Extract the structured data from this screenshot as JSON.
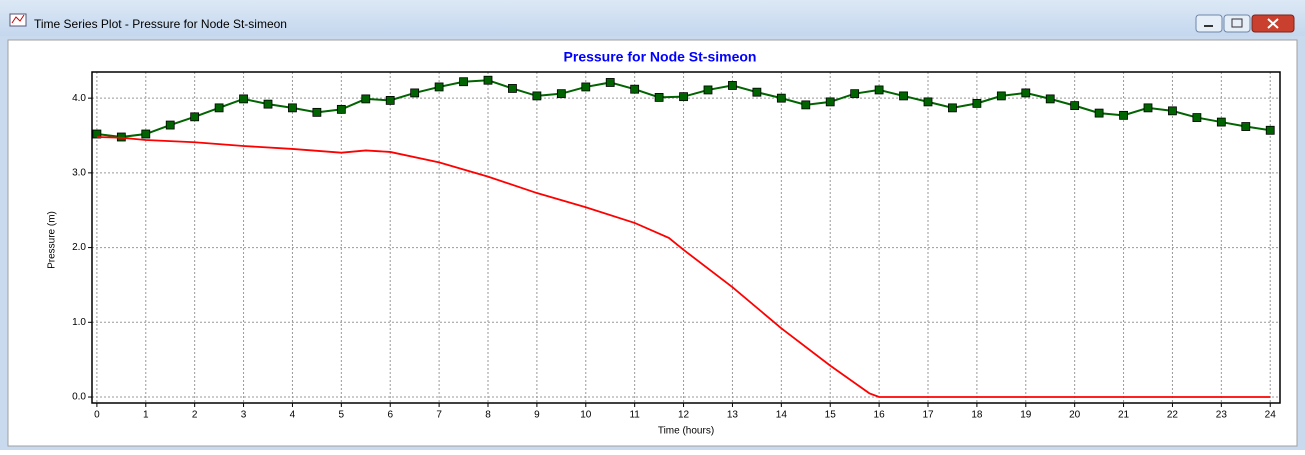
{
  "window": {
    "title": "Time Series Plot - Pressure for Node St-simeon"
  },
  "chart_data": {
    "type": "line",
    "title": "Pressure for Node St-simeon",
    "x_label": "Time (hours)",
    "y_label": "Pressure (m)",
    "xlim": [
      -0.1,
      24.2
    ],
    "ylim": [
      -0.08,
      4.35
    ],
    "xticks": [
      0,
      1,
      2,
      3,
      4,
      5,
      6,
      7,
      8,
      9,
      10,
      11,
      12,
      13,
      14,
      15,
      16,
      17,
      18,
      19,
      20,
      21,
      22,
      23,
      24
    ],
    "yticks": [
      {
        "value": 0,
        "label": "0.0"
      },
      {
        "value": 1,
        "label": "1.0"
      },
      {
        "value": 2,
        "label": "2.0"
      },
      {
        "value": 3,
        "label": "3.0"
      },
      {
        "value": 4,
        "label": "4.0"
      }
    ],
    "grid": true,
    "series": [
      {
        "color": "#006400",
        "marker": "square",
        "x": [
          0,
          0.5,
          1,
          1.5,
          2,
          2.5,
          3,
          3.5,
          4,
          4.5,
          5,
          5.5,
          6,
          6.5,
          7,
          7.5,
          8,
          8.5,
          9,
          9.5,
          10,
          10.5,
          11,
          11.5,
          12,
          12.5,
          13,
          13.5,
          14,
          14.5,
          15,
          15.5,
          16,
          16.5,
          17,
          17.5,
          18,
          18.5,
          19,
          19.5,
          20,
          20.5,
          21,
          21.5,
          22,
          22.5,
          23,
          23.5,
          24
        ],
        "values": [
          3.52,
          3.48,
          3.52,
          3.64,
          3.75,
          3.87,
          3.99,
          3.92,
          3.87,
          3.81,
          3.85,
          3.99,
          3.97,
          4.07,
          4.15,
          4.22,
          4.24,
          4.13,
          4.03,
          4.06,
          4.15,
          4.21,
          4.12,
          4.01,
          4.02,
          4.11,
          4.17,
          4.08,
          4.0,
          3.91,
          3.95,
          4.06,
          4.11,
          4.03,
          3.95,
          3.87,
          3.93,
          4.03,
          4.07,
          3.99,
          3.9,
          3.8,
          3.77,
          3.87,
          3.83,
          3.74,
          3.68,
          3.62,
          3.57
        ]
      },
      {
        "color": "#ff0000",
        "x": [
          0,
          0.5,
          1,
          2,
          3,
          4,
          5,
          5.5,
          6,
          7,
          8,
          9,
          10,
          11,
          11.7,
          12,
          13,
          14,
          15,
          15.8,
          16,
          24
        ],
        "values": [
          3.48,
          3.47,
          3.44,
          3.41,
          3.36,
          3.32,
          3.27,
          3.3,
          3.28,
          3.14,
          2.95,
          2.73,
          2.54,
          2.33,
          2.13,
          1.97,
          1.47,
          0.92,
          0.42,
          0.05,
          0,
          0
        ]
      }
    ]
  }
}
